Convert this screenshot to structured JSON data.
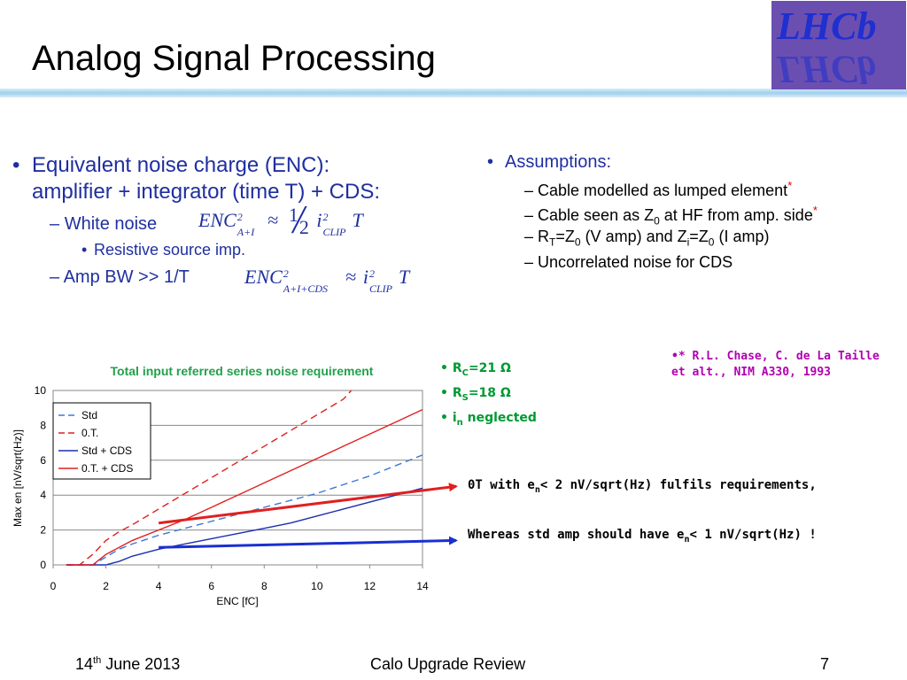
{
  "slide": {
    "title": "Analog Signal Processing",
    "logo": "LHCb",
    "left": {
      "bullet1_line1": "Equivalent noise charge (ENC):",
      "bullet1_line2": "amplifier + integrator (time T) + CDS",
      "bullet1_colon": ":",
      "white_noise": "White noise",
      "resistive": "Resistive source imp.",
      "amp_bw": "Amp BW >> 1/T",
      "formula1": {
        "lhs": "ENC",
        "sup": "2",
        "sub": "A+I",
        "approx": "≈",
        "frac_num": "1",
        "frac_den": "2",
        "i": "i",
        "isup": "2",
        "isub": "CLIP",
        "T": "T"
      },
      "formula2": {
        "lhs": "ENC",
        "sup": "2",
        "sub": "A+I+CDS",
        "approx": "≈",
        "i": "i",
        "isup": "2",
        "isub": "CLIP",
        "T": "T"
      }
    },
    "right": {
      "assumptions": "Assumptions:",
      "a1": "Cable modelled as lumped element",
      "a1_star": "*",
      "a2_pre": "Cable seen as Z",
      "a2_sub": "0",
      "a2_post": " at HF from amp. side",
      "a2_star": "*",
      "a3_r": "R",
      "a3_rsub": "T",
      "a3_eq": "=Z",
      "a3_zsub": "0",
      "a3_mid": " (V amp) and Z",
      "a3_isub": "i",
      "a3_eq2": "=Z",
      "a3_z2sub": "0",
      "a3_post": " (I amp)",
      "a4": "Uncorrelated noise for CDS"
    },
    "reference": {
      "line1": "•* R.L. Chase, C. de La Taille",
      "line2": "et alt., NIM A330, 1993"
    },
    "params": {
      "rc_pre": "R",
      "rc_sub": "C",
      "rc_post": "=21 Ω",
      "rs_pre": "R",
      "rs_sub": "S",
      "rs_post": "=18 Ω",
      "in_pre": "i",
      "in_sub": "n",
      "in_post": " neglected"
    },
    "notes": {
      "n1_pre": "0T with e",
      "n1_sub": "n",
      "n1_post": "< 2 nV/sqrt(Hz) fulfils requirements,",
      "n2_pre": "Whereas std amp should have e",
      "n2_sub": "n",
      "n2_post": "< 1 nV/sqrt(Hz) !"
    },
    "footer": {
      "date_pre": "14",
      "date_sup": "th",
      "date_post": " June 2013",
      "title": "Calo Upgrade Review",
      "page": "7"
    }
  },
  "chart_data": {
    "type": "line",
    "title": "Total input referred series noise requirement",
    "xlabel": "ENC [fC]",
    "ylabel": "Max en [nV/sqrt(Hz)]",
    "xlim": [
      0,
      14
    ],
    "ylim": [
      0,
      10
    ],
    "xticks": [
      "0",
      "2",
      "4",
      "6",
      "8",
      "10",
      "12",
      "14"
    ],
    "yticks": [
      "0",
      "2",
      "4",
      "6",
      "8",
      "10"
    ],
    "grid": "horizontal",
    "legend_position": "top-left",
    "series": [
      {
        "name": "Std",
        "color": "#3a78d8",
        "dash": true,
        "x": [
          0.5,
          1.0,
          1.5,
          2.0,
          2.5,
          3.0,
          4.0,
          5.0,
          6.0,
          7.0,
          8.0,
          9.0,
          10.0,
          11.0,
          12.0,
          13.0,
          14.0
        ],
        "y": [
          0,
          0,
          0,
          0.45,
          0.9,
          1.2,
          1.7,
          2.1,
          2.5,
          2.9,
          3.3,
          3.7,
          4.1,
          4.6,
          5.1,
          5.7,
          6.3
        ]
      },
      {
        "name": "0.T.",
        "color": "#e02020",
        "dash": true,
        "x": [
          0.5,
          1.0,
          1.5,
          2.0,
          2.5,
          3.0,
          4.0,
          5.0,
          6.0,
          7.0,
          8.0,
          9.0,
          10.0,
          11.0,
          11.3
        ],
        "y": [
          0,
          0,
          0.6,
          1.4,
          1.9,
          2.3,
          3.2,
          4.1,
          5.0,
          5.9,
          6.8,
          7.7,
          8.6,
          9.5,
          10.0
        ]
      },
      {
        "name": "Std + CDS",
        "color": "#1a2fb0",
        "dash": false,
        "x": [
          0.5,
          1.0,
          1.5,
          2.0,
          2.5,
          3.0,
          4.0,
          5.0,
          6.0,
          7.0,
          8.0,
          9.0,
          10.0,
          11.0,
          12.0,
          13.0,
          14.0
        ],
        "y": [
          0,
          0,
          0,
          0,
          0.2,
          0.5,
          0.9,
          1.2,
          1.5,
          1.8,
          2.1,
          2.4,
          2.8,
          3.2,
          3.6,
          4.0,
          4.4
        ]
      },
      {
        "name": "0.T. + CDS",
        "color": "#e02020",
        "dash": false,
        "x": [
          0.5,
          1.0,
          1.5,
          2.0,
          2.5,
          3.0,
          4.0,
          5.0,
          6.0,
          7.0,
          8.0,
          9.0,
          10.0,
          11.0,
          12.0,
          13.0,
          14.0
        ],
        "y": [
          0,
          0,
          0,
          0.6,
          1.0,
          1.4,
          2.0,
          2.6,
          3.3,
          4.0,
          4.7,
          5.4,
          6.1,
          6.8,
          7.5,
          8.2,
          8.9
        ]
      }
    ],
    "annotations": [
      {
        "color": "#e02020",
        "from": [
          4.0,
          2.4
        ],
        "to": [
          14.0,
          4.2
        ],
        "arrow": true
      },
      {
        "color": "#1a2fd0",
        "from": [
          4.0,
          1.0
        ],
        "to": [
          14.0,
          1.4
        ],
        "arrow": true
      }
    ]
  }
}
